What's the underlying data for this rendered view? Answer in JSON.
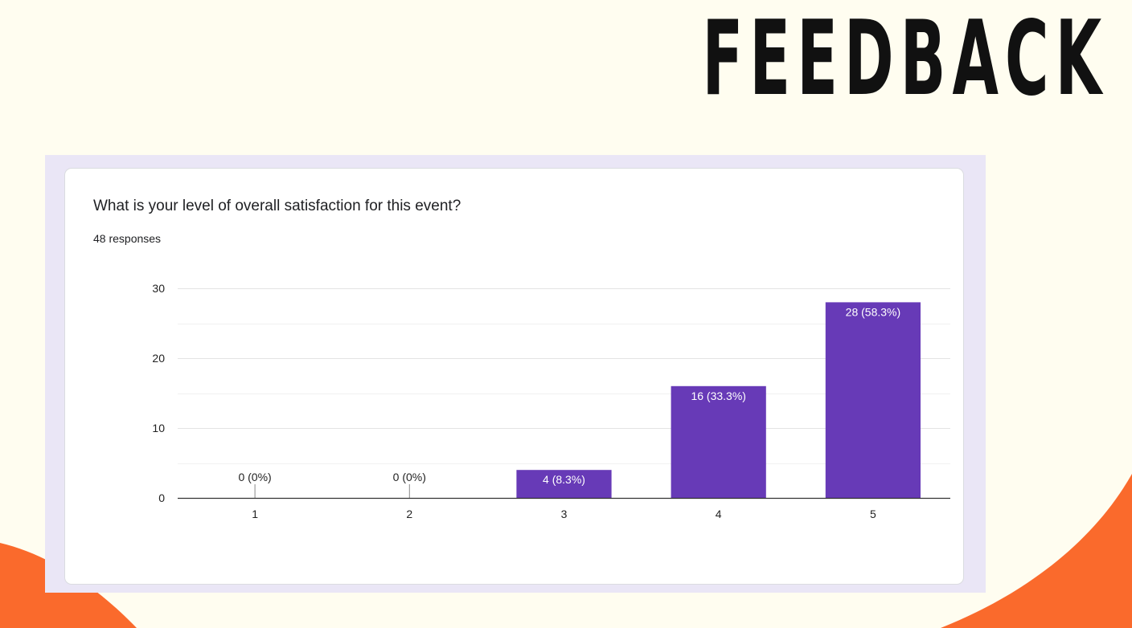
{
  "page": {
    "title": "FEEDBACK"
  },
  "card": {
    "question": "What is your level of overall satisfaction for this event?",
    "responses": "48 responses"
  },
  "colors": {
    "bar": "#673ab7",
    "background": "#fffdf0",
    "accent": "#fa6a2c",
    "frame": "#eae6f6"
  },
  "chart_data": {
    "type": "bar",
    "title": "",
    "xlabel": "",
    "ylabel": "",
    "categories": [
      "1",
      "2",
      "3",
      "4",
      "5"
    ],
    "values": [
      0,
      0,
      4,
      16,
      28
    ],
    "data_labels": [
      "0 (0%)",
      "0 (0%)",
      "4 (8.3%)",
      "16 (33.3%)",
      "28 (58.3%)"
    ],
    "ylim": [
      0,
      30
    ],
    "yticks": [
      0,
      10,
      20,
      30
    ],
    "grid": true
  }
}
